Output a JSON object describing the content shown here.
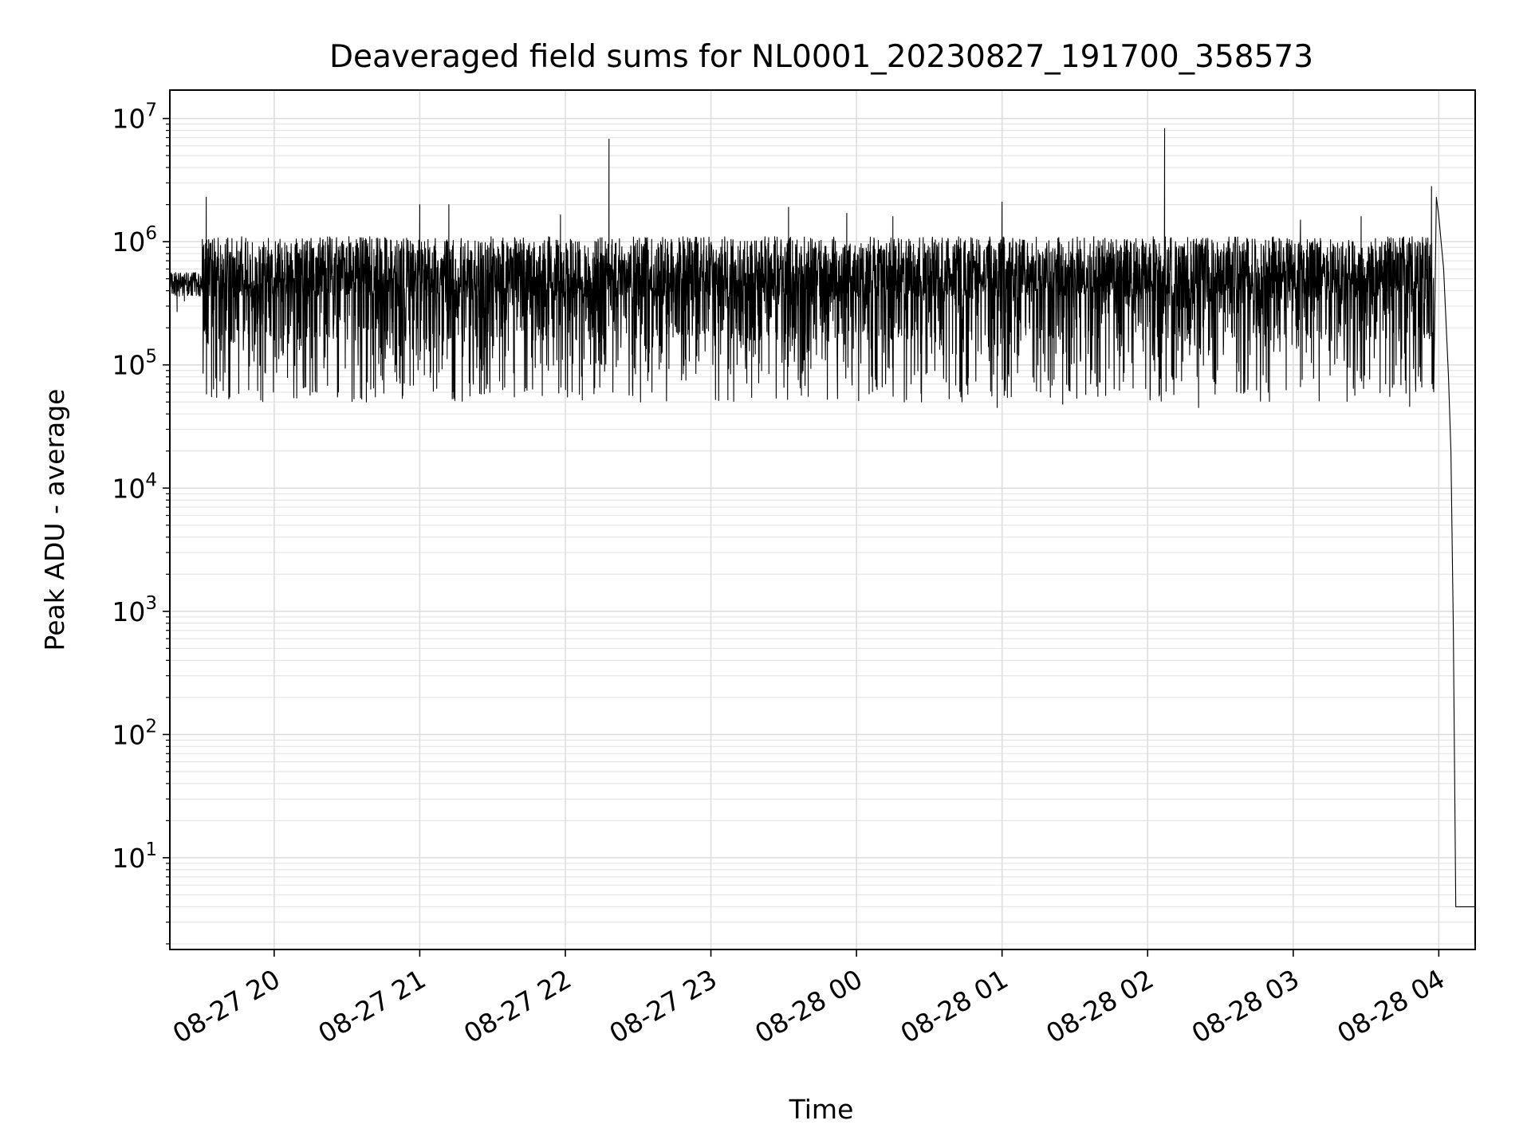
{
  "chart_data": {
    "type": "line",
    "title": "Deaveraged field sums for NL0001_20230827_191700_358573",
    "xlabel": "Time",
    "ylabel": "Peak ADU - average",
    "yscale": "log",
    "x_range": [
      "2023-08-27 19:17:00",
      "2023-08-28 04:15:00"
    ],
    "ylim": [
      1.8,
      17000000
    ],
    "x_ticks": [
      {
        "t": "2023-08-27 20:00",
        "label": "08-27 20"
      },
      {
        "t": "2023-08-27 21:00",
        "label": "08-27 21"
      },
      {
        "t": "2023-08-27 22:00",
        "label": "08-27 22"
      },
      {
        "t": "2023-08-27 23:00",
        "label": "08-27 23"
      },
      {
        "t": "2023-08-28 00:00",
        "label": "08-28 00"
      },
      {
        "t": "2023-08-28 01:00",
        "label": "08-28 01"
      },
      {
        "t": "2023-08-28 02:00",
        "label": "08-28 02"
      },
      {
        "t": "2023-08-28 03:00",
        "label": "08-28 03"
      },
      {
        "t": "2023-08-28 04:00",
        "label": "08-28 04"
      }
    ],
    "y_ticks": [
      {
        "value": 10,
        "base": "10",
        "exp": "1"
      },
      {
        "value": 100,
        "base": "10",
        "exp": "2"
      },
      {
        "value": 1000,
        "base": "10",
        "exp": "3"
      },
      {
        "value": 10000,
        "base": "10",
        "exp": "4"
      },
      {
        "value": 100000,
        "base": "10",
        "exp": "5"
      },
      {
        "value": 1000000,
        "base": "10",
        "exp": "6"
      },
      {
        "value": 10000000,
        "base": "10",
        "exp": "7"
      }
    ],
    "grid": "major and minor (light gray)",
    "line_color": "#000000",
    "baseline_region": {
      "from": "2023-08-27 19:17",
      "to": "2023-08-27 19:30",
      "typical": 450000
    },
    "noisy_region": {
      "from": "2023-08-27 19:30",
      "to": "2023-08-28 03:58",
      "typical_high": 1100000,
      "dip_floor": 50000
    },
    "series": [
      {
        "values": [
          [
            "2023-08-27 19:17",
            420000
          ],
          [
            "2023-08-27 19:18",
            380000
          ],
          [
            "2023-08-27 19:19",
            520000
          ],
          [
            "2023-08-27 19:20",
            270000
          ],
          [
            "2023-08-27 19:21",
            420000
          ],
          [
            "2023-08-27 19:23",
            330000
          ],
          [
            "2023-08-27 19:25",
            460000
          ],
          [
            "2023-08-27 19:27",
            480000
          ],
          [
            "2023-08-27 19:29",
            520000
          ],
          [
            "2023-08-27 19:31",
            560000
          ],
          [
            "2023-08-27 19:32",
            2300000
          ],
          [
            "2023-08-27 19:33",
            900000
          ],
          [
            "2023-08-27 19:51",
            130000
          ],
          [
            "2023-08-27 20:03",
            130000
          ],
          [
            "2023-08-27 20:12",
            65000
          ],
          [
            "2023-08-27 20:22",
            68000
          ],
          [
            "2023-08-27 20:38",
            50000
          ],
          [
            "2023-08-27 20:44",
            82000
          ],
          [
            "2023-08-27 21:00",
            2000000
          ],
          [
            "2023-08-27 21:12",
            2000000
          ],
          [
            "2023-08-27 21:39",
            55000
          ],
          [
            "2023-08-27 21:58",
            1650000
          ],
          [
            "2023-08-27 22:07",
            52000
          ],
          [
            "2023-08-27 22:18",
            6800000
          ],
          [
            "2023-08-27 22:31",
            50000
          ],
          [
            "2023-08-27 23:07",
            52000
          ],
          [
            "2023-08-27 23:32",
            1900000
          ],
          [
            "2023-08-27 23:56",
            1700000
          ],
          [
            "2023-08-28 00:15",
            1600000
          ],
          [
            "2023-08-28 00:43",
            55000
          ],
          [
            "2023-08-28 00:58",
            45000
          ],
          [
            "2023-08-28 01:00",
            2100000
          ],
          [
            "2023-08-28 01:25",
            48000
          ],
          [
            "2023-08-28 02:07",
            8300000
          ],
          [
            "2023-08-28 02:21",
            45000
          ],
          [
            "2023-08-28 03:03",
            1500000
          ],
          [
            "2023-08-28 03:28",
            1600000
          ],
          [
            "2023-08-28 03:48",
            46000
          ],
          [
            "2023-08-28 03:57",
            2800000
          ],
          [
            "2023-08-28 03:59",
            2300000
          ],
          [
            "2023-08-28 04:00",
            1600000
          ],
          [
            "2023-08-28 04:02",
            600000
          ],
          [
            "2023-08-28 04:04",
            80000
          ],
          [
            "2023-08-28 04:05",
            20000
          ],
          [
            "2023-08-28 04:06",
            700
          ],
          [
            "2023-08-28 04:07",
            4
          ],
          [
            "2023-08-28 04:15",
            4
          ]
        ]
      }
    ]
  }
}
